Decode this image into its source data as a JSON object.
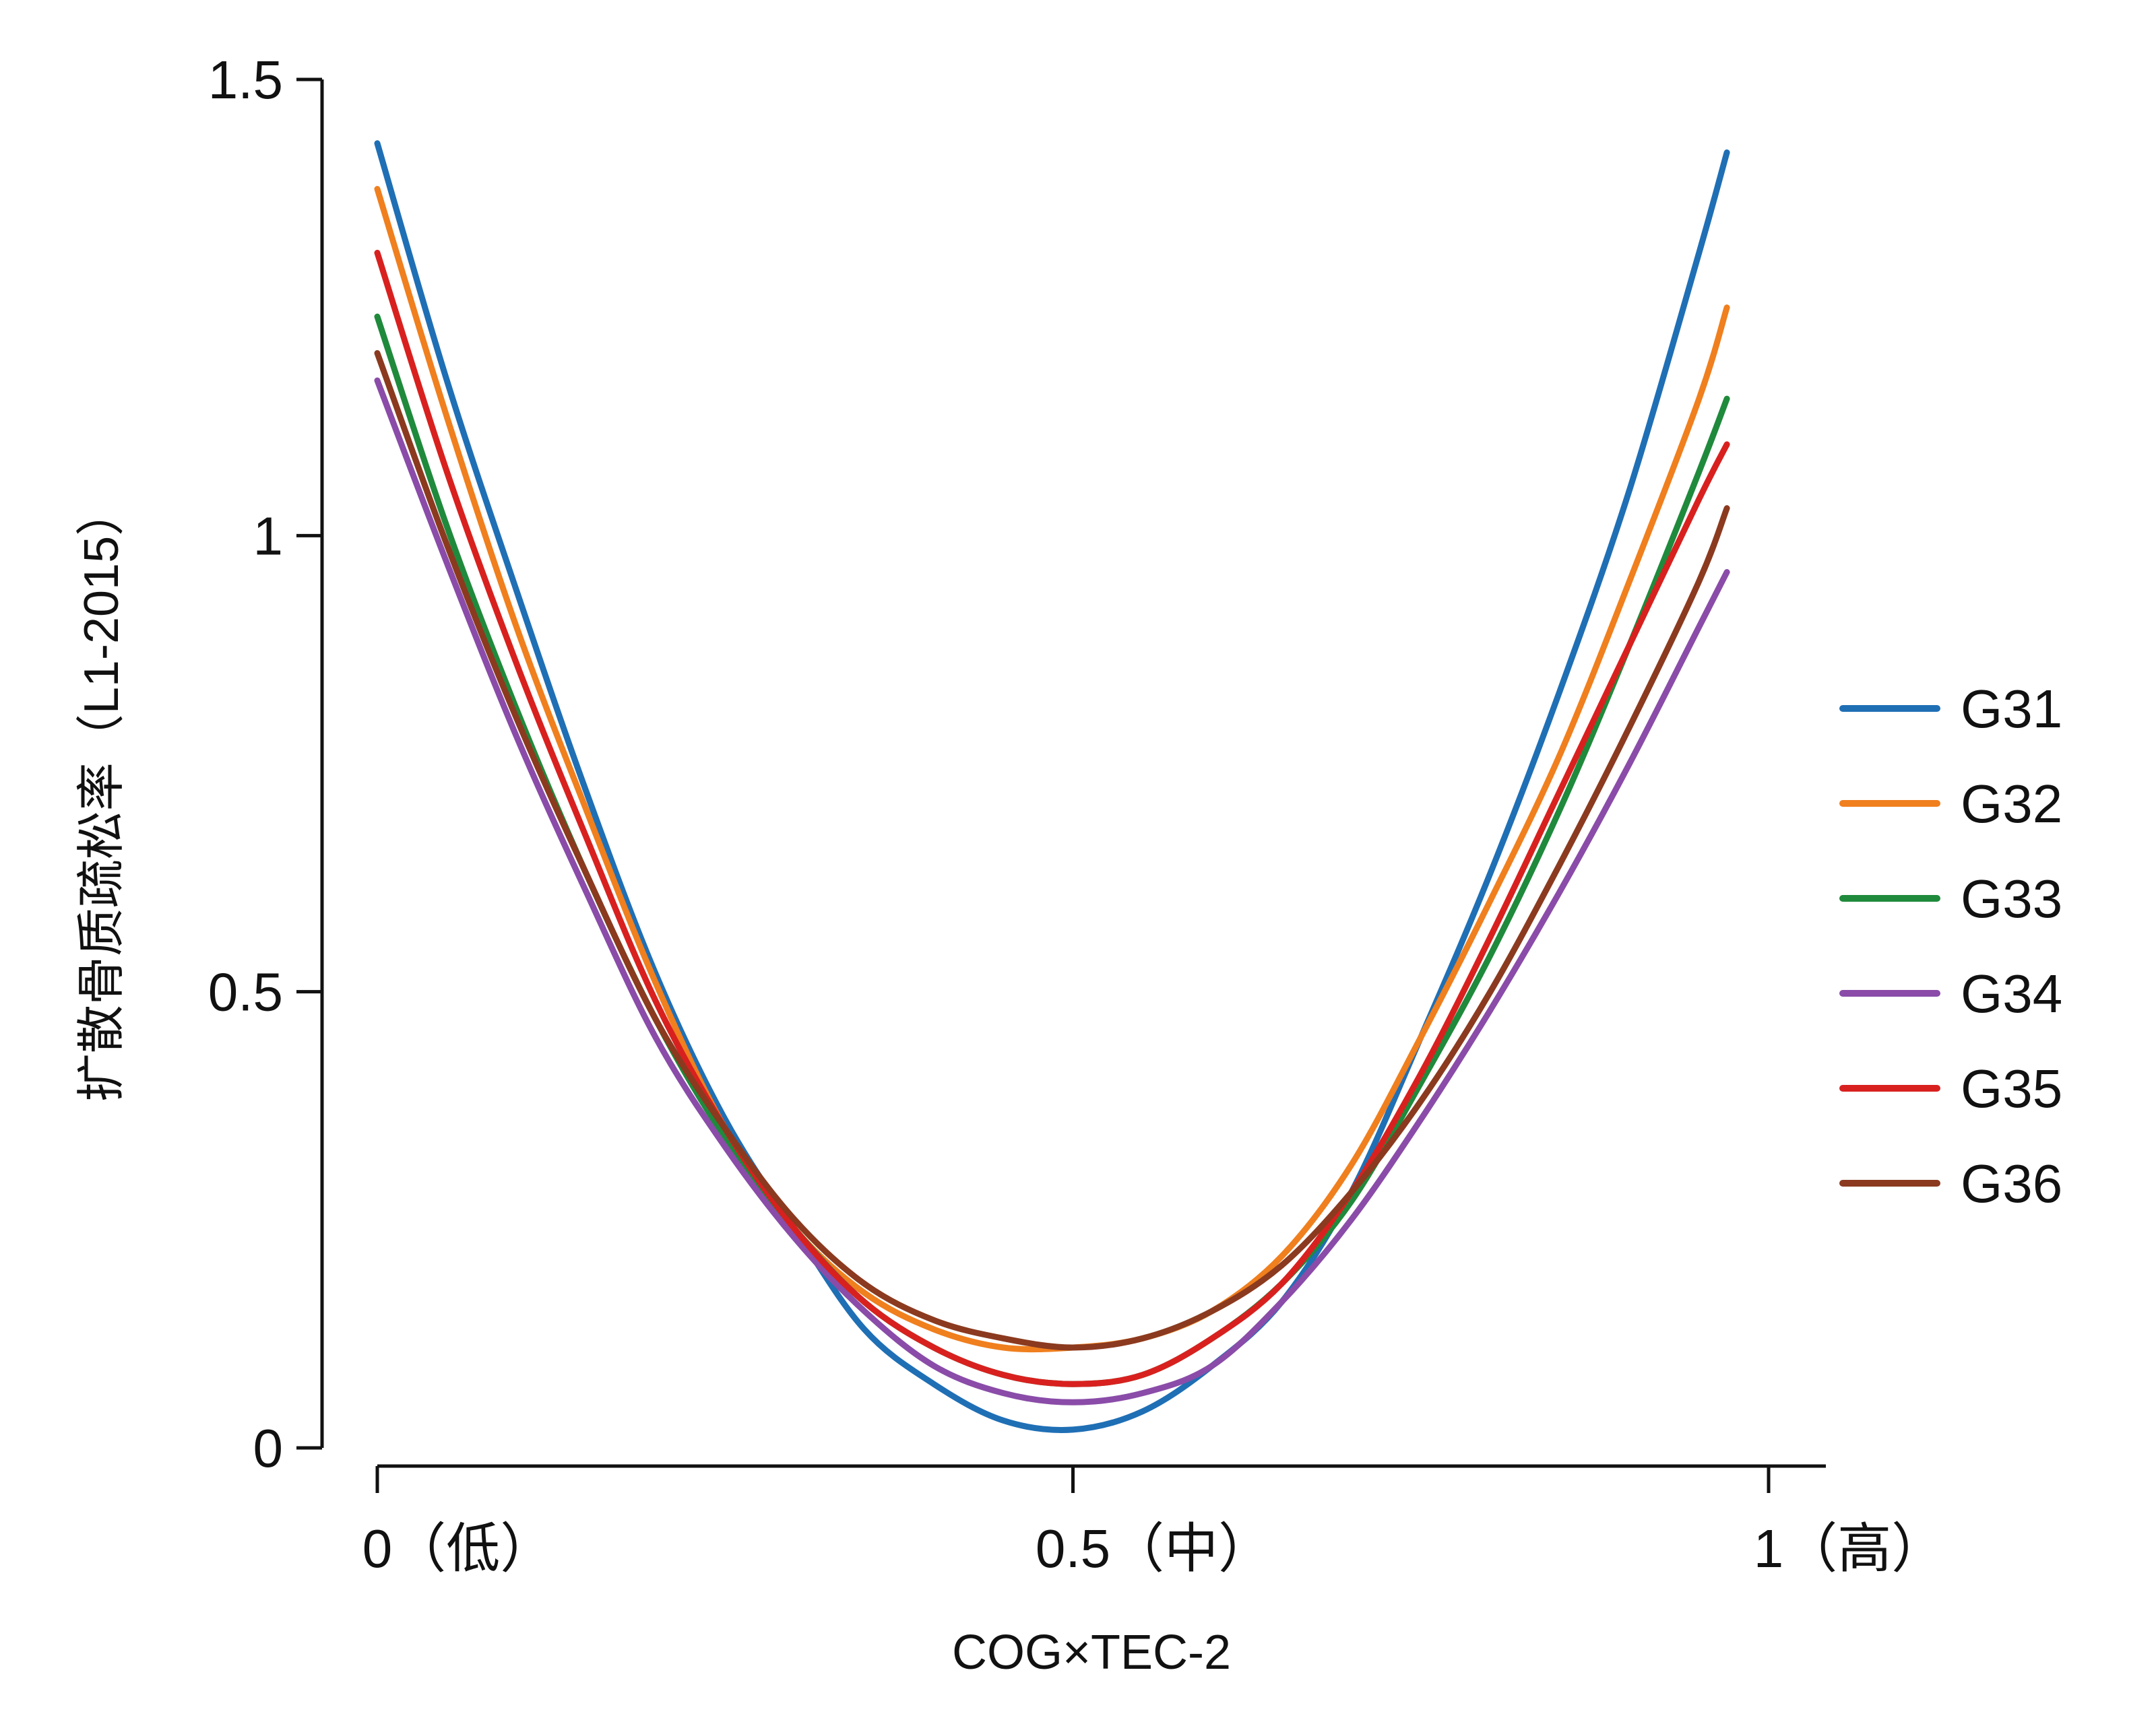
{
  "chart_data": {
    "type": "line",
    "title": "",
    "xlabel": "COG×TEC-2",
    "ylabel": "扩散骨质疏松率（L1-2015）",
    "xlim": [
      0,
      1
    ],
    "ylim": [
      0,
      1.5
    ],
    "x_ticks": [
      {
        "value": 0,
        "label": "0（低）"
      },
      {
        "value": 0.5,
        "label": "0.5（中）"
      },
      {
        "value": 1,
        "label": "1（高）"
      }
    ],
    "y_ticks": [
      {
        "value": 0,
        "label": "0"
      },
      {
        "value": 0.5,
        "label": "0.5"
      },
      {
        "value": 1,
        "label": "1"
      },
      {
        "value": 1.5,
        "label": "1.5"
      }
    ],
    "legend_position": "right",
    "grid": false,
    "x": [
      0,
      0.05,
      0.1,
      0.15,
      0.2,
      0.25,
      0.3,
      0.35,
      0.4,
      0.45,
      0.5,
      0.55,
      0.6,
      0.65,
      0.7,
      0.75,
      0.8,
      0.85,
      0.9,
      0.95,
      0.97
    ],
    "series": [
      {
        "name": "G31",
        "color": "#1f6fb5",
        "values": [
          1.43,
          1.17,
          0.94,
          0.72,
          0.52,
          0.36,
          0.24,
          0.13,
          0.07,
          0.03,
          0.02,
          0.04,
          0.09,
          0.16,
          0.28,
          0.45,
          0.63,
          0.83,
          1.05,
          1.31,
          1.42
        ]
      },
      {
        "name": "G32",
        "color": "#f07f1e",
        "values": [
          1.38,
          1.13,
          0.9,
          0.7,
          0.51,
          0.35,
          0.24,
          0.17,
          0.13,
          0.11,
          0.11,
          0.12,
          0.15,
          0.21,
          0.31,
          0.45,
          0.6,
          0.76,
          0.95,
          1.15,
          1.25
        ]
      },
      {
        "name": "G33",
        "color": "#1f8a3c",
        "values": [
          1.24,
          1.01,
          0.81,
          0.63,
          0.47,
          0.34,
          0.24,
          0.16,
          0.11,
          0.08,
          0.07,
          0.08,
          0.12,
          0.18,
          0.27,
          0.4,
          0.54,
          0.7,
          0.88,
          1.07,
          1.15
        ]
      },
      {
        "name": "G34",
        "color": "#8a4ca8",
        "values": [
          1.17,
          0.97,
          0.78,
          0.61,
          0.45,
          0.33,
          0.23,
          0.15,
          0.09,
          0.06,
          0.05,
          0.06,
          0.09,
          0.16,
          0.25,
          0.36,
          0.48,
          0.61,
          0.75,
          0.9,
          0.96
        ]
      },
      {
        "name": "G35",
        "color": "#d8211f",
        "values": [
          1.31,
          1.07,
          0.86,
          0.67,
          0.49,
          0.35,
          0.24,
          0.16,
          0.11,
          0.08,
          0.07,
          0.08,
          0.12,
          0.18,
          0.28,
          0.41,
          0.56,
          0.72,
          0.88,
          1.04,
          1.1
        ]
      },
      {
        "name": "G36",
        "color": "#8b3a1f",
        "values": [
          1.2,
          0.99,
          0.8,
          0.63,
          0.47,
          0.35,
          0.25,
          0.18,
          0.14,
          0.12,
          0.11,
          0.12,
          0.15,
          0.2,
          0.28,
          0.38,
          0.5,
          0.64,
          0.79,
          0.95,
          1.03
        ]
      }
    ]
  }
}
